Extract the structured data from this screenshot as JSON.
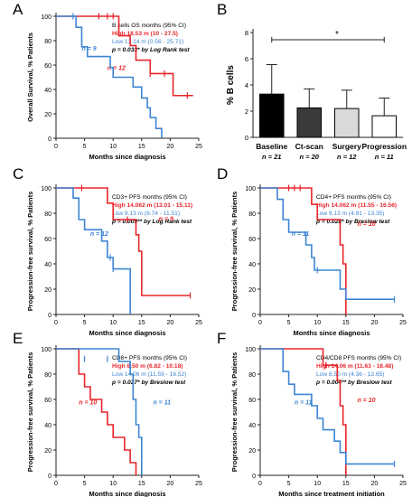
{
  "colors": {
    "high": "#e8262b",
    "low": "#3d85d4",
    "axis": "#222222",
    "ink": "#000000"
  },
  "chart_data": [
    {
      "id": "A",
      "type": "line",
      "panel_letter": "A",
      "ylabel": "Overall Survival, % Patients",
      "xlabel": "Months since diagnosis",
      "xlim": [
        0,
        25
      ],
      "ylim": [
        0,
        100
      ],
      "xticks": [
        0,
        5,
        10,
        15,
        20,
        25
      ],
      "yticks": [
        0,
        20,
        40,
        60,
        80,
        100
      ],
      "legend": {
        "title": "B cells OS months (95% CI)",
        "high": "High  18.53 m (10 - 27.5)",
        "low": "Low  13.14 m (0.56 - 25.71)",
        "p": "p = 0.033* by Log Rank test",
        "p_bold": true
      },
      "series": [
        {
          "name": "High",
          "color_key": "high",
          "points": [
            [
              0,
              100
            ],
            [
              10,
              100
            ],
            [
              11,
              84
            ],
            [
              13,
              76
            ],
            [
              14,
              64
            ],
            [
              16.5,
              53
            ],
            [
              20.5,
              35
            ],
            [
              24,
              35
            ]
          ],
          "censors": [
            [
              7.5,
              100
            ],
            [
              9,
              100
            ],
            [
              10,
              100
            ],
            [
              16.5,
              53
            ],
            [
              19,
              53
            ],
            [
              23,
              35
            ]
          ],
          "n_label": "n = 12"
        },
        {
          "name": "Low",
          "color_key": "low",
          "points": [
            [
              0,
              100
            ],
            [
              2.5,
              100
            ],
            [
              3.5,
              91
            ],
            [
              4.5,
              75
            ],
            [
              5.5,
              67
            ],
            [
              9.5,
              58
            ],
            [
              10,
              50
            ],
            [
              13.5,
              42
            ],
            [
              15,
              33
            ],
            [
              16,
              25
            ],
            [
              16.5,
              17
            ],
            [
              17.5,
              8
            ],
            [
              18.5,
              0
            ]
          ],
          "censors": [
            [
              3,
              100
            ]
          ],
          "n_label": "n = 9"
        }
      ]
    },
    {
      "id": "B",
      "type": "bar",
      "panel_letter": "B",
      "ylabel": "% B cells",
      "ylim": [
        0,
        8
      ],
      "yticks": [
        0,
        2,
        4,
        6,
        8
      ],
      "categories": [
        "Baseline",
        "Ct-scan",
        "Surgery",
        "Progression"
      ],
      "n_labels": [
        "n = 21",
        "n = 20",
        "n = 12",
        "n = 11"
      ],
      "values": [
        3.3,
        2.25,
        2.2,
        1.65
      ],
      "errors": [
        2.25,
        1.45,
        1.4,
        1.35
      ],
      "fill_colors": [
        "#000000",
        "#3a3a3a",
        "#d9d9d9",
        "#ffffff"
      ],
      "significance": "*"
    },
    {
      "id": "C",
      "type": "line",
      "panel_letter": "C",
      "ylabel": "Progression-free survival, % Patients",
      "xlabel": "Months since diagnosis",
      "xlim": [
        0,
        25
      ],
      "ylim": [
        0,
        100
      ],
      "xticks": [
        0,
        5,
        10,
        15,
        20,
        25
      ],
      "yticks": [
        0,
        20,
        40,
        60,
        80,
        100
      ],
      "legend": {
        "title": "CD3+  PFS months (95% CI)",
        "high": "High  14.062 m (13.01 - 15.11)",
        "low": "Low  9.13 m (6.74 - 11.51)",
        "p": "p = 0.009** by Log Rank test",
        "p_bold": true
      },
      "series": [
        {
          "name": "High",
          "color_key": "high",
          "points": [
            [
              0,
              100
            ],
            [
              8,
              100
            ],
            [
              9,
              88
            ],
            [
              10,
              75
            ],
            [
              13,
              75
            ],
            [
              14,
              63
            ],
            [
              14.5,
              50
            ],
            [
              15,
              15
            ],
            [
              23.5,
              15
            ]
          ],
          "censors": [
            [
              4.5,
              100
            ],
            [
              12.5,
              75
            ],
            [
              23.5,
              15
            ]
          ],
          "n_label": "n = 9"
        },
        {
          "name": "Low",
          "color_key": "low",
          "points": [
            [
              0,
              100
            ],
            [
              2,
              100
            ],
            [
              3,
              92
            ],
            [
              4,
              75
            ],
            [
              5,
              67
            ],
            [
              8,
              58
            ],
            [
              9,
              45
            ],
            [
              10,
              36
            ],
            [
              12,
              36
            ],
            [
              13,
              0
            ]
          ],
          "censors": [
            [
              9.5,
              45
            ],
            [
              10,
              36
            ]
          ],
          "n_label": "n = 12"
        }
      ]
    },
    {
      "id": "D",
      "type": "line",
      "panel_letter": "D",
      "ylabel": "Progression-free survival, % Patients",
      "xlabel": "Months since diagnosis",
      "xlim": [
        0,
        25
      ],
      "ylim": [
        0,
        100
      ],
      "xticks": [
        0,
        5,
        10,
        15,
        20,
        25
      ],
      "yticks": [
        0,
        20,
        40,
        60,
        80,
        100
      ],
      "legend": {
        "title": "CD4+  PFS months (95% CI)",
        "high": "High  14.062 m (11.55 - 16.56)",
        "low": "Low  9.13 m (4.91 - 13.35)",
        "p": "p = 0.028* by Breslow test",
        "p_bold": true
      },
      "series": [
        {
          "name": "High",
          "color_key": "high",
          "points": [
            [
              0,
              100
            ],
            [
              8,
              100
            ],
            [
              9,
              87
            ],
            [
              10,
              75
            ],
            [
              13,
              75
            ],
            [
              14,
              55
            ],
            [
              14.5,
              40
            ],
            [
              15,
              0
            ]
          ],
          "censors": [
            [
              5,
              100
            ],
            [
              6,
              100
            ],
            [
              7,
              100
            ]
          ],
          "n_label": "n = 10"
        },
        {
          "name": "Low",
          "color_key": "low",
          "points": [
            [
              0,
              100
            ],
            [
              2,
              100
            ],
            [
              3,
              91
            ],
            [
              4,
              75
            ],
            [
              5,
              65
            ],
            [
              8,
              55
            ],
            [
              9,
              45
            ],
            [
              9.5,
              35
            ],
            [
              13,
              35
            ],
            [
              14,
              20
            ],
            [
              15,
              12
            ],
            [
              23.5,
              12
            ]
          ],
          "censors": [
            [
              10,
              35
            ],
            [
              23.5,
              12
            ]
          ],
          "n_label": "n = 11"
        }
      ]
    },
    {
      "id": "E",
      "type": "line",
      "panel_letter": "E",
      "ylabel": "Progression-free survival, % Patients",
      "xlabel": "Months since diagnosis",
      "xlim": [
        0,
        25
      ],
      "ylim": [
        0,
        100
      ],
      "xticks": [
        0,
        5,
        10,
        15,
        20,
        25
      ],
      "yticks": [
        0,
        20,
        40,
        60,
        80,
        100
      ],
      "legend": {
        "title": "CD8+  PFS months (95% CI)",
        "high": "High  8.50 m (6.82 - 10.18)",
        "low": "Low  14.06 m (11.59 - 16.52)",
        "p": "p = 0.027* by Breslow test",
        "p_bold": true
      },
      "series": [
        {
          "name": "High",
          "color_key": "high",
          "points": [
            [
              0,
              100
            ],
            [
              3,
              100
            ],
            [
              4,
              80
            ],
            [
              5,
              70
            ],
            [
              6,
              60
            ],
            [
              8,
              50
            ],
            [
              9,
              40
            ],
            [
              10,
              30
            ],
            [
              12,
              20
            ],
            [
              13,
              10
            ],
            [
              14,
              0
            ]
          ],
          "censors": [],
          "n_label": "n = 10"
        },
        {
          "name": "Low",
          "color_key": "low",
          "points": [
            [
              0,
              100
            ],
            [
              10,
              100
            ],
            [
              11,
              90
            ],
            [
              12.5,
              90
            ],
            [
              13,
              80
            ],
            [
              13.5,
              60
            ],
            [
              14,
              40
            ],
            [
              14.5,
              30
            ],
            [
              15,
              0
            ]
          ],
          "censors": [
            [
              5,
              92
            ],
            [
              9,
              92
            ]
          ],
          "n_label": "n = 11"
        }
      ]
    },
    {
      "id": "F",
      "type": "line",
      "panel_letter": "F",
      "ylabel": "Progression-free survival, % Patients",
      "xlabel": "Months since treatment initiation",
      "xlim": [
        0,
        25
      ],
      "ylim": [
        0,
        100
      ],
      "xticks": [
        0,
        5,
        10,
        15,
        20,
        25
      ],
      "yticks": [
        0,
        20,
        40,
        60,
        80,
        100
      ],
      "legend": {
        "title": "CD4/CD8  PFS months (95% CI)",
        "high": "High  14.06 m (11.63 - 16.48)",
        "low": "Low  8.50 m (4.36 - 12.65)",
        "p": "p = 0.004** by Breslow test",
        "p_bold": true
      },
      "series": [
        {
          "name": "High",
          "color_key": "high",
          "points": [
            [
              0,
              100
            ],
            [
              10,
              100
            ],
            [
              11,
              87
            ],
            [
              13,
              87
            ],
            [
              13.5,
              75
            ],
            [
              14,
              55
            ],
            [
              14.5,
              40
            ],
            [
              15,
              0
            ]
          ],
          "censors": [
            [
              11.5,
              87
            ]
          ],
          "n_label": "n = 10"
        },
        {
          "name": "Low",
          "color_key": "low",
          "points": [
            [
              0,
              100
            ],
            [
              3,
              100
            ],
            [
              4,
              82
            ],
            [
              5,
              72
            ],
            [
              6,
              64
            ],
            [
              9,
              55
            ],
            [
              10,
              45
            ],
            [
              11,
              36
            ],
            [
              13,
              27
            ],
            [
              14,
              18
            ],
            [
              15,
              9
            ],
            [
              23.5,
              9
            ]
          ],
          "censors": [
            [
              23.5,
              9
            ]
          ],
          "n_label": "n = 11"
        }
      ]
    }
  ]
}
